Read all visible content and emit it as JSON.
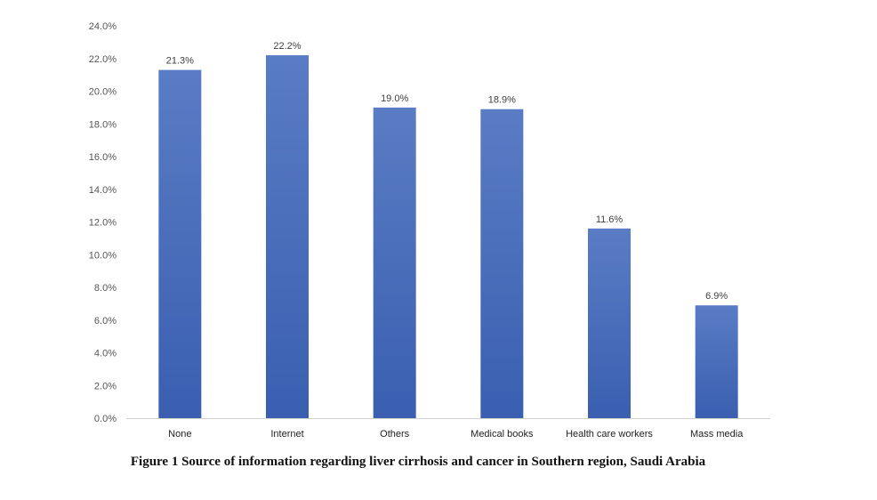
{
  "chart_data": {
    "type": "bar",
    "categories": [
      "None",
      "Internet",
      "Others",
      "Medical books",
      "Health care workers",
      "Mass media"
    ],
    "values": [
      21.3,
      22.2,
      19.0,
      18.9,
      11.6,
      6.9
    ],
    "value_labels": [
      "21.3%",
      "22.2%",
      "19.0%",
      "18.9%",
      "11.6%",
      "6.9%"
    ],
    "yticks": [
      "0.0%",
      "2.0%",
      "4.0%",
      "6.0%",
      "8.0%",
      "10.0%",
      "12.0%",
      "14.0%",
      "16.0%",
      "18.0%",
      "20.0%",
      "22.0%",
      "24.0%"
    ],
    "ylim": [
      0,
      24
    ],
    "grid": false,
    "bar_color": "#4169b8",
    "title": "",
    "xlabel": "",
    "ylabel": ""
  },
  "caption": "Figure 1 Source of information regarding liver cirrhosis and cancer in Southern region, Saudi Arabia"
}
